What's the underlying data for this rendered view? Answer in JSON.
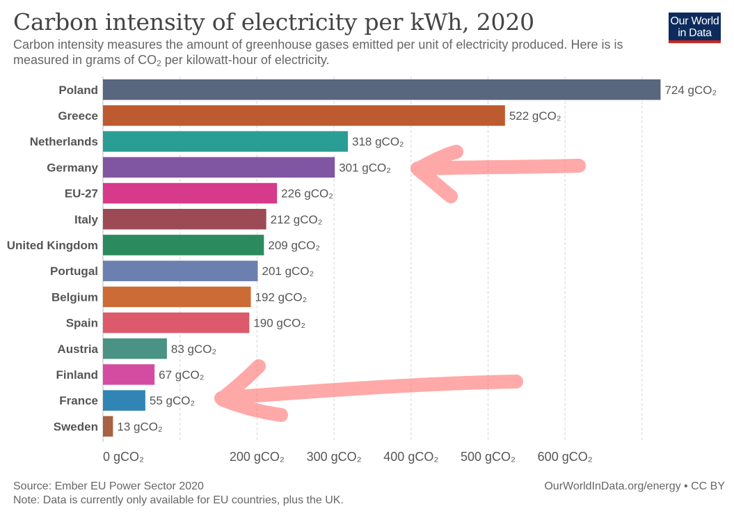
{
  "header": {
    "title": "Carbon intensity of electricity per kWh, 2020",
    "subtitle_part1": "Carbon intensity measures the amount of greenhouse gases emitted per unit of electricity produced. Here is is measured in grams of CO",
    "subtitle_sub": "2",
    "subtitle_part2": " per kilowatt-hour of electricity.",
    "logo_line1": "Our World",
    "logo_line2": "in Data"
  },
  "footer": {
    "source": "Source: Ember EU Power Sector 2020",
    "note": "Note: Data is currently only available for EU countries, plus the UK.",
    "link": "OurWorldInData.org/energy • CC BY"
  },
  "chart_data": {
    "type": "bar",
    "orientation": "horizontal",
    "title": "Carbon intensity of electricity per kWh, 2020",
    "unit": "gCO₂",
    "categories": [
      "Poland",
      "Greece",
      "Netherlands",
      "Germany",
      "EU-27",
      "Italy",
      "United Kingdom",
      "Portugal",
      "Belgium",
      "Spain",
      "Austria",
      "Finland",
      "France",
      "Sweden"
    ],
    "values": [
      724,
      522,
      318,
      301,
      226,
      212,
      209,
      201,
      192,
      190,
      83,
      67,
      55,
      13
    ],
    "value_labels": [
      "724 gCO₂",
      "522 gCO₂",
      "318 gCO₂",
      "301 gCO₂",
      "226 gCO₂",
      "212 gCO₂",
      "209 gCO₂",
      "201 gCO₂",
      "192 gCO₂",
      "190 gCO₂",
      "83 gCO₂",
      "67 gCO₂",
      "55 gCO₂",
      "13 gCO₂"
    ],
    "colors": [
      "#58667e",
      "#be5a2f",
      "#2a9d94",
      "#8055a2",
      "#d73a8a",
      "#9c4a55",
      "#2b8a5e",
      "#6b80ae",
      "#cc6b35",
      "#dc5a6b",
      "#4a9283",
      "#d44ca1",
      "#3185b4",
      "#a86143"
    ],
    "xticks": [
      0,
      200,
      300,
      400,
      500,
      600
    ],
    "xtick_labels": [
      "0 gCO₂",
      "200 gCO₂",
      "300 gCO₂",
      "400 gCO₂",
      "500 gCO₂",
      "600 gCO₂"
    ],
    "gridlines": [
      100,
      200,
      300,
      400,
      500,
      600,
      700
    ],
    "xlim": [
      0,
      700
    ],
    "grid": true
  },
  "annotations": {
    "arrows": [
      "arrow-to-germany",
      "arrow-to-france"
    ],
    "arrow_color": "#ff7070"
  }
}
